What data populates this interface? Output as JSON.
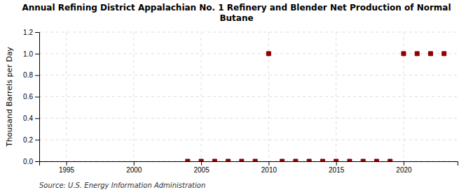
{
  "chart_data": {
    "type": "scatter",
    "title": "Annual Refining District Appalachian No. 1 Refinery and Blender Net Production of Normal\nButane",
    "y_label": "Thousand Barrels per Day",
    "source": "Source: U.S. Energy Information Administration",
    "x": [
      2004,
      2005,
      2006,
      2007,
      2008,
      2009,
      2010,
      2011,
      2012,
      2013,
      2014,
      2015,
      2016,
      2017,
      2018,
      2019,
      2020,
      2021,
      2022,
      2023
    ],
    "values": [
      0.0,
      0.0,
      0.0,
      0.0,
      0.0,
      0.0,
      1.0,
      0.0,
      0.0,
      0.0,
      0.0,
      0.0,
      0.0,
      0.0,
      0.0,
      0.0,
      1.0,
      1.0,
      1.0,
      1.0
    ],
    "color": "#8b0000",
    "marker": "square",
    "xlim": [
      1993,
      2024
    ],
    "ylim": [
      0.0,
      1.2
    ],
    "xticks": [
      1995,
      2000,
      2005,
      2010,
      2015,
      2020
    ],
    "yticks": [
      {
        "value": 0.0,
        "label": "0.0"
      },
      0.2,
      0.4,
      0.6,
      0.8,
      {
        "value": 1.0,
        "label": "1.0"
      },
      1.2
    ],
    "grid": true
  }
}
